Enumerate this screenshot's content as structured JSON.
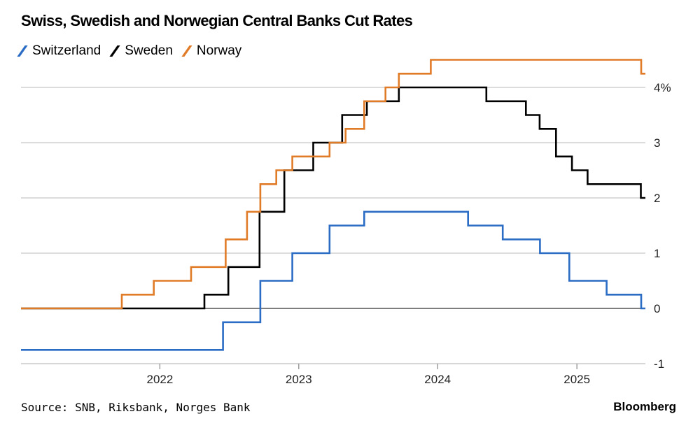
{
  "chart_data": {
    "type": "line",
    "title": "Swiss, Swedish and Norwegian Central Banks Cut Rates",
    "source": "Source: SNB, Riksbank, Norges Bank",
    "brand": "Bloomberg",
    "x_ticks": [
      "2022",
      "2023",
      "2024",
      "2025"
    ],
    "y_ticks": [
      {
        "value": -1,
        "label": "-1"
      },
      {
        "value": 0,
        "label": "0"
      },
      {
        "value": 1,
        "label": "1"
      },
      {
        "value": 2,
        "label": "2"
      },
      {
        "value": 3,
        "label": "3"
      },
      {
        "value": 4,
        "label": "4%"
      }
    ],
    "xlim": [
      "2021-01-01",
      "2025-06-30"
    ],
    "ylim": [
      -1.0,
      4.5
    ],
    "grid": true,
    "legend_position": "top-left",
    "series": [
      {
        "name": "Switzerland",
        "color": "#2b6cc4",
        "steps": [
          [
            "2021-01-01",
            -0.75
          ],
          [
            "2022-06-16",
            -0.25
          ],
          [
            "2022-09-22",
            0.5
          ],
          [
            "2022-12-15",
            1.0
          ],
          [
            "2023-03-23",
            1.5
          ],
          [
            "2023-06-22",
            1.75
          ],
          [
            "2024-03-21",
            1.5
          ],
          [
            "2024-06-20",
            1.25
          ],
          [
            "2024-09-26",
            1.0
          ],
          [
            "2024-12-12",
            0.5
          ],
          [
            "2025-03-20",
            0.25
          ],
          [
            "2025-06-19",
            0.0
          ],
          [
            "2025-06-30",
            0.0
          ]
        ]
      },
      {
        "name": "Sweden",
        "color": "#000000",
        "steps": [
          [
            "2021-01-01",
            0.0
          ],
          [
            "2022-04-28",
            0.25
          ],
          [
            "2022-06-30",
            0.75
          ],
          [
            "2022-09-20",
            1.75
          ],
          [
            "2022-11-24",
            2.5
          ],
          [
            "2023-02-08",
            3.0
          ],
          [
            "2023-04-25",
            3.5
          ],
          [
            "2023-06-29",
            3.75
          ],
          [
            "2023-09-21",
            4.0
          ],
          [
            "2024-05-08",
            3.75
          ],
          [
            "2024-08-20",
            3.5
          ],
          [
            "2024-09-25",
            3.25
          ],
          [
            "2024-11-07",
            2.75
          ],
          [
            "2024-12-19",
            2.5
          ],
          [
            "2025-01-29",
            2.25
          ],
          [
            "2025-06-18",
            2.0
          ],
          [
            "2025-06-30",
            2.0
          ]
        ]
      },
      {
        "name": "Norway",
        "color": "#e07b28",
        "steps": [
          [
            "2021-01-01",
            0.0
          ],
          [
            "2021-09-23",
            0.25
          ],
          [
            "2021-12-16",
            0.5
          ],
          [
            "2022-03-24",
            0.75
          ],
          [
            "2022-06-23",
            1.25
          ],
          [
            "2022-08-18",
            1.75
          ],
          [
            "2022-09-22",
            2.25
          ],
          [
            "2022-11-03",
            2.5
          ],
          [
            "2022-12-15",
            2.75
          ],
          [
            "2023-03-23",
            3.0
          ],
          [
            "2023-05-04",
            3.25
          ],
          [
            "2023-06-22",
            3.75
          ],
          [
            "2023-08-17",
            4.0
          ],
          [
            "2023-09-21",
            4.25
          ],
          [
            "2023-12-14",
            4.5
          ],
          [
            "2025-06-19",
            4.25
          ],
          [
            "2025-06-30",
            4.25
          ]
        ]
      }
    ]
  }
}
